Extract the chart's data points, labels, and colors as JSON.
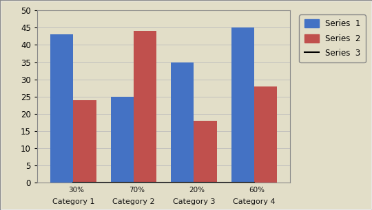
{
  "categories": [
    "Category 1",
    "Category 2",
    "Category 3",
    "Category 4"
  ],
  "series1": [
    43,
    25,
    35,
    45
  ],
  "series2": [
    24,
    44,
    18,
    28
  ],
  "series3_y": [
    0,
    0,
    0,
    0
  ],
  "series3_labels": [
    "30%",
    "70%",
    "20%",
    "60%"
  ],
  "series1_color": "#4472C4",
  "series2_color": "#C0504D",
  "series3_color": "#000000",
  "background_color": "#E2DEC8",
  "plot_bg_color": "#E2DEC8",
  "ylim": [
    0,
    50
  ],
  "yticks": [
    0,
    5,
    10,
    15,
    20,
    25,
    30,
    35,
    40,
    45,
    50
  ],
  "legend_labels": [
    "Series  1",
    "Series  2",
    "Series  3"
  ],
  "grid_color": "#BBBBBB",
  "border_color": "#888888",
  "bar_width": 0.38
}
